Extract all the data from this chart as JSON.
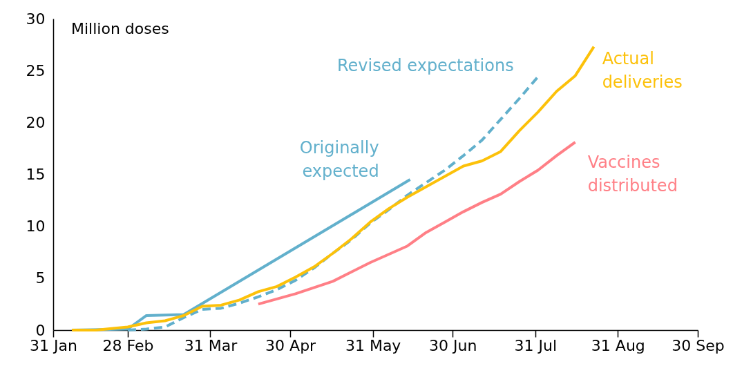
{
  "chart_data": {
    "type": "line",
    "annotations": [
      "Million doses"
    ],
    "xlim": [
      "--01-31",
      "--09-30"
    ],
    "xticks": [
      {
        "value": "--01-31",
        "label": "31 Jan"
      },
      {
        "value": "--02-28",
        "label": "28 Feb"
      },
      {
        "value": "--03-31",
        "label": "31 Mar"
      },
      {
        "value": "--04-30",
        "label": "30 Apr"
      },
      {
        "value": "--05-31",
        "label": "31 May"
      },
      {
        "value": "--06-30",
        "label": "30 Jun"
      },
      {
        "value": "--07-31",
        "label": "31 Jul"
      },
      {
        "value": "--08-31",
        "label": "31 Aug"
      },
      {
        "value": "--09-30",
        "label": "30 Sep"
      }
    ],
    "ylim": [
      0,
      30
    ],
    "yticks": [
      0,
      5,
      10,
      15,
      20,
      25,
      30
    ],
    "grid": false,
    "legend": false,
    "marker": "none",
    "series": [
      {
        "name": "Originally\nexpected",
        "color": "#62b0cc",
        "line_style": "solid",
        "x": [
          "--02-07",
          "--02-28",
          "--03-07",
          "--03-21",
          "--06-14"
        ],
        "values": [
          0,
          0.1,
          1.4,
          1.5,
          14.5
        ]
      },
      {
        "name": "Revised expectations",
        "color": "#62b0cc",
        "line_style": "dashed",
        "x": [
          "--02-28",
          "--03-07",
          "--03-14",
          "--03-21",
          "--03-28",
          "--04-04",
          "--04-11",
          "--04-18",
          "--04-25",
          "--05-02",
          "--05-09",
          "--05-16",
          "--05-23",
          "--05-30",
          "--06-06",
          "--06-13",
          "--06-20",
          "--06-27",
          "--07-04",
          "--07-11",
          "--07-18",
          "--07-25",
          "--08-01"
        ],
        "values": [
          0,
          0.1,
          0.3,
          1.2,
          2.0,
          2.1,
          2.6,
          3.2,
          3.9,
          4.8,
          6.0,
          7.4,
          8.7,
          10.3,
          11.6,
          13.0,
          14.2,
          15.4,
          16.8,
          18.3,
          20.3,
          22.3,
          24.4
        ]
      },
      {
        "name": "Actual\ndeliveries",
        "color": "#fcc10a",
        "line_style": "solid",
        "x": [
          "--02-07",
          "--02-16",
          "--02-28",
          "--03-07",
          "--03-14",
          "--03-21",
          "--03-28",
          "--04-04",
          "--04-11",
          "--04-18",
          "--04-25",
          "--05-02",
          "--05-09",
          "--05-16",
          "--05-23",
          "--05-30",
          "--06-06",
          "--06-13",
          "--06-20",
          "--06-27",
          "--07-04",
          "--07-11",
          "--07-18",
          "--07-25",
          "--08-01",
          "--08-08",
          "--08-15",
          "--08-22"
        ],
        "values": [
          0,
          0,
          0.3,
          0.7,
          0.9,
          1.4,
          2.3,
          2.4,
          2.9,
          3.7,
          4.2,
          5.1,
          6.1,
          7.4,
          8.8,
          10.4,
          11.7,
          12.8,
          13.8,
          14.8,
          15.8,
          16.3,
          17.2,
          19.2,
          21.0,
          23.0,
          24.5,
          27.3
        ]
      },
      {
        "name": "Vaccines\ndistributed",
        "color": "#ff7f86",
        "line_style": "solid",
        "x": [
          "--04-18",
          "--04-25",
          "--05-02",
          "--05-09",
          "--05-16",
          "--05-23",
          "--05-30",
          "--06-06",
          "--06-13",
          "--06-20",
          "--06-27",
          "--07-04",
          "--07-11",
          "--07-18",
          "--07-25",
          "--08-01",
          "--08-08",
          "--08-15"
        ],
        "values": [
          2.5,
          3.0,
          3.5,
          4.1,
          4.7,
          5.6,
          6.5,
          7.3,
          8.1,
          9.4,
          10.4,
          11.4,
          12.3,
          13.1,
          14.3,
          15.4,
          16.8,
          18.1
        ]
      }
    ]
  }
}
